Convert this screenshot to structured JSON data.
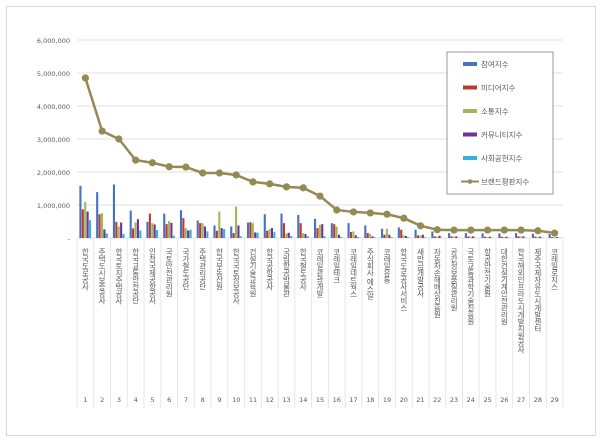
{
  "chart_data": {
    "type": "bar+line",
    "title": "",
    "xlabel": "",
    "ylabel": "",
    "ylim": [
      0,
      6000000
    ],
    "yticks": [
      "-",
      "1,000,000",
      "2,000,000",
      "3,000,000",
      "4,000,000",
      "5,000,000",
      "6,000,000"
    ],
    "grid": true,
    "legend_position": "right",
    "ranks": [
      "1",
      "2",
      "3",
      "4",
      "5",
      "6",
      "7",
      "8",
      "9",
      "10",
      "11",
      "12",
      "13",
      "14",
      "15",
      "16",
      "17",
      "18",
      "19",
      "20",
      "21",
      "22",
      "23",
      "24",
      "25",
      "26",
      "27",
      "28",
      "29"
    ],
    "categories": [
      "한국도로공사",
      "주택도시보증공사",
      "한국토지주택공사",
      "한국교통안전공단",
      "인천국제공항공사",
      "국토안전관리원",
      "국가철도공단",
      "주택관리공단",
      "한국부동산원",
      "한국국토정보공사",
      "건설기술교육원",
      "한국공항공사",
      "국립항공박물관",
      "한국철도공사",
      "코레일관광개발",
      "코레일테크",
      "코레일네트웍스",
      "주식회사 에스알",
      "코레일유통",
      "한국도로공사서비스",
      "새만금개발공사",
      "자동차손해배상진흥원",
      "공간정보품질관리원",
      "국토교통과학기술진흥원",
      "항공안전기술원",
      "대한건설기계안전관리원",
      "한국해외인프라도시개발지원공사",
      "제주국제자유도시개발센터",
      "코레일로지스"
    ],
    "series": [
      {
        "name": "참여지수",
        "type": "bar",
        "color": "#4472c4",
        "values": [
          1580000,
          1390000,
          1620000,
          830000,
          490000,
          740000,
          840000,
          530000,
          380000,
          350000,
          470000,
          720000,
          740000,
          700000,
          580000,
          450000,
          450000,
          380000,
          280000,
          320000,
          250000,
          200000,
          150000,
          150000,
          140000,
          140000,
          150000,
          130000,
          120000
        ]
      },
      {
        "name": "미디어지수",
        "type": "bar",
        "color": "#c0392b",
        "values": [
          870000,
          720000,
          490000,
          290000,
          740000,
          420000,
          600000,
          450000,
          220000,
          150000,
          480000,
          220000,
          450000,
          450000,
          300000,
          420000,
          180000,
          150000,
          100000,
          250000,
          80000,
          50000,
          50000,
          50000,
          40000,
          40000,
          50000,
          40000,
          30000
        ]
      },
      {
        "name": "소통지수",
        "type": "bar",
        "color": "#9bbb59",
        "values": [
          1100000,
          750000,
          350000,
          470000,
          450000,
          510000,
          300000,
          450000,
          800000,
          950000,
          450000,
          270000,
          140000,
          150000,
          400000,
          350000,
          200000,
          120000,
          280000,
          80000,
          70000,
          40000,
          40000,
          40000,
          30000,
          30000,
          40000,
          30000,
          20000
        ]
      },
      {
        "name": "커뮤니티지수",
        "type": "bar",
        "color": "#7030a0",
        "values": [
          800000,
          260000,
          470000,
          570000,
          410000,
          460000,
          230000,
          350000,
          300000,
          380000,
          170000,
          300000,
          160000,
          120000,
          420000,
          100000,
          80000,
          50000,
          100000,
          60000,
          100000,
          70000,
          50000,
          50000,
          40000,
          40000,
          50000,
          40000,
          30000
        ]
      },
      {
        "name": "사회공헌지수",
        "type": "bar",
        "color": "#31b5d6",
        "values": [
          540000,
          140000,
          120000,
          230000,
          240000,
          70000,
          250000,
          200000,
          270000,
          50000,
          160000,
          180000,
          60000,
          50000,
          50000,
          30000,
          30000,
          20000,
          30000,
          20000,
          20000,
          10000,
          10000,
          10000,
          10000,
          10000,
          10000,
          10000,
          10000
        ]
      },
      {
        "name": "브랜드평판지수",
        "type": "line",
        "color": "#948a54",
        "values": [
          4850000,
          3240000,
          3000000,
          2360000,
          2280000,
          2160000,
          2150000,
          1970000,
          1970000,
          1910000,
          1700000,
          1640000,
          1550000,
          1520000,
          1270000,
          850000,
          790000,
          760000,
          720000,
          600000,
          370000,
          250000,
          240000,
          240000,
          240000,
          240000,
          240000,
          220000,
          150000
        ]
      }
    ]
  }
}
